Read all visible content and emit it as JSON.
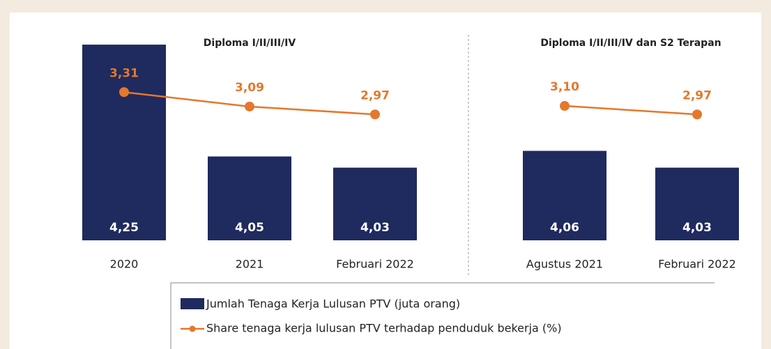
{
  "chart_data": [
    {
      "type": "combo",
      "title": "Diploma I/II/III/IV",
      "categories": [
        "2020",
        "2021",
        "Februari 2022"
      ],
      "ylim": [
        3.9,
        4.28
      ],
      "y2lim": [
        1.05,
        4.29
      ],
      "series": [
        {
          "name": "Jumlah Tenaga Kerja Lulusan PTV (juta orang)",
          "color": "#1f2a5e",
          "values": [
            4.25,
            4.05,
            4.03
          ],
          "value_labels": [
            "4,25",
            "4,05",
            "4,03"
          ]
        },
        {
          "name": "Share tenaga kerja lulusan PTV terhadap penduduk bekerja (%)",
          "color": "#e4782b",
          "axis": "y2",
          "values": [
            3.31,
            3.09,
            2.97
          ],
          "value_labels": [
            "3,31",
            "3,09",
            "2,97"
          ]
        }
      ]
    },
    {
      "type": "combo",
      "title": "Diploma I/II/III/IV dan S2 Terapan",
      "categories": [
        "Agustus 2021",
        "Februari 2022"
      ],
      "ylim": [
        3.9,
        4.28
      ],
      "y2lim": [
        1.05,
        4.29
      ],
      "series": [
        {
          "color": "#1f2a5e",
          "values": [
            4.06,
            4.03
          ],
          "value_labels": [
            "4,06",
            "4,03"
          ]
        },
        {
          "color": "#e4782b",
          "axis": "y2",
          "values": [
            3.1,
            2.97
          ],
          "value_labels": [
            "3,10",
            "2,97"
          ]
        }
      ]
    }
  ]
}
